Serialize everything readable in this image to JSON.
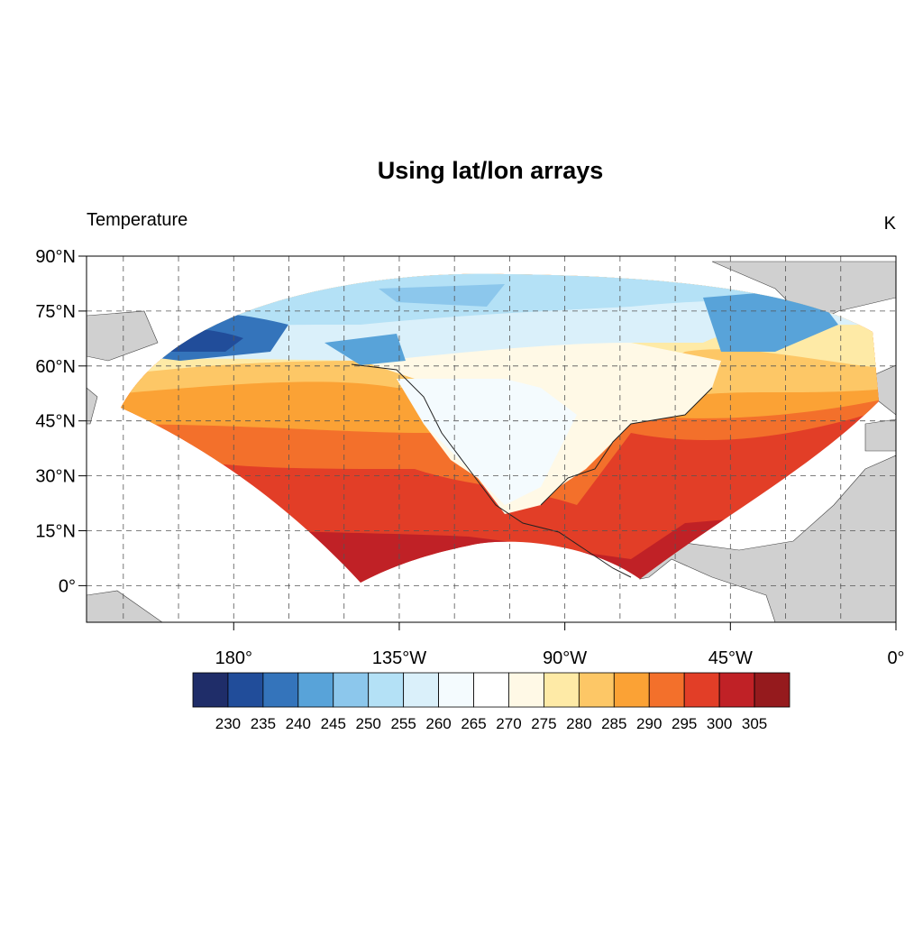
{
  "chart_data": {
    "type": "contour-map",
    "title": "Using lat/lon arrays",
    "left_string": "Temperature",
    "right_string": "K",
    "xlim": [
      -220,
      0
    ],
    "ylim": [
      -10,
      90
    ],
    "xticks": [
      {
        "value": -180,
        "label": "180°"
      },
      {
        "value": -135,
        "label": "135°W"
      },
      {
        "value": -90,
        "label": "90°W"
      },
      {
        "value": -45,
        "label": "45°W"
      },
      {
        "value": 0,
        "label": "0°"
      }
    ],
    "yticks": [
      {
        "value": 0,
        "label": "0°"
      },
      {
        "value": 15,
        "label": "15°N"
      },
      {
        "value": 30,
        "label": "30°N"
      },
      {
        "value": 45,
        "label": "45°N"
      },
      {
        "value": 60,
        "label": "60°N"
      },
      {
        "value": 75,
        "label": "75°N"
      },
      {
        "value": 90,
        "label": "90°N"
      }
    ],
    "grid": true,
    "grid_step": 15,
    "levels": [
      230,
      235,
      240,
      245,
      250,
      255,
      260,
      265,
      270,
      275,
      280,
      285,
      290,
      295,
      300,
      305
    ],
    "colors": [
      "#1f2d69",
      "#214d9a",
      "#3474bb",
      "#58a3d9",
      "#8cc7ec",
      "#b4e1f6",
      "#daf0fa",
      "#f4fbfe",
      "#ffffff",
      "#fff9e6",
      "#feeaa6",
      "#fdc766",
      "#fba235",
      "#f3702b",
      "#e23e27",
      "#c02126",
      "#951a1d"
    ]
  }
}
